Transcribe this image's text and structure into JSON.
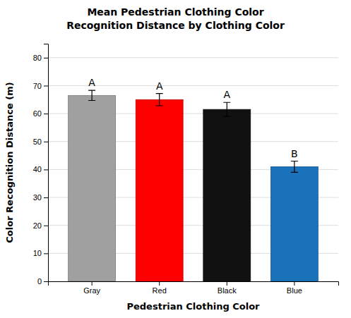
{
  "chart_data": {
    "type": "bar",
    "title": "Mean Pedestrian Clothing Color",
    "subtitle": "Recognition Distance by Clothing Color",
    "x_label": "Pedestrian Clothing Color",
    "y_label": "Color Recognition Distance (m)",
    "categories": [
      "Gray",
      "Red",
      "Black",
      "Blue"
    ],
    "values": [
      66.5,
      65.0,
      61.5,
      41.0
    ],
    "errors": [
      1.8,
      2.2,
      2.5,
      2.0
    ],
    "colors": [
      "#a0a0a0",
      "#ff0000",
      "#111111",
      "#1a72bb"
    ],
    "annotations": [
      "A",
      "A",
      "A",
      "B"
    ],
    "ylim": [
      0,
      85
    ],
    "yticks": [
      0,
      10,
      20,
      30,
      40,
      50,
      60,
      70,
      80
    ],
    "grid": true
  }
}
